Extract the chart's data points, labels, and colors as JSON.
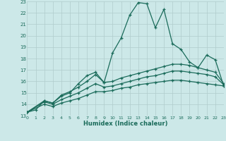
{
  "xlabel": "Humidex (Indice chaleur)",
  "background_color": "#cce8e8",
  "line_color": "#1a6b5a",
  "grid_color": "#b0cccc",
  "xlim": [
    0,
    23
  ],
  "ylim": [
    13,
    23
  ],
  "xticks": [
    0,
    1,
    2,
    3,
    4,
    5,
    6,
    7,
    8,
    9,
    10,
    11,
    12,
    13,
    14,
    15,
    16,
    17,
    18,
    19,
    20,
    21,
    22,
    23
  ],
  "yticks": [
    13,
    14,
    15,
    16,
    17,
    18,
    19,
    20,
    21,
    22,
    23
  ],
  "line1_x": [
    0,
    1,
    2,
    3,
    4,
    5,
    6,
    7,
    8,
    9,
    10,
    11,
    12,
    13,
    14,
    15,
    16,
    17,
    18,
    19,
    20,
    21,
    22,
    23
  ],
  "line1_y": [
    13.3,
    13.5,
    14.3,
    14.1,
    14.7,
    15.0,
    15.8,
    16.5,
    16.8,
    15.9,
    18.5,
    19.8,
    21.8,
    22.9,
    22.8,
    20.7,
    22.3,
    19.3,
    18.8,
    17.7,
    17.2,
    18.3,
    17.9,
    15.6
  ],
  "line2_x": [
    0,
    2,
    3,
    4,
    5,
    6,
    7,
    8,
    9,
    10,
    11,
    12,
    13,
    14,
    15,
    16,
    17,
    18,
    19,
    20,
    21,
    22,
    23
  ],
  "line2_y": [
    13.3,
    14.3,
    14.1,
    14.8,
    15.1,
    15.5,
    16.0,
    16.6,
    15.9,
    16.0,
    16.3,
    16.5,
    16.7,
    16.9,
    17.1,
    17.3,
    17.5,
    17.5,
    17.4,
    17.2,
    17.0,
    16.8,
    15.8
  ],
  "line3_x": [
    0,
    2,
    3,
    4,
    5,
    6,
    7,
    8,
    9,
    10,
    11,
    12,
    13,
    14,
    15,
    16,
    17,
    18,
    19,
    20,
    21,
    22,
    23
  ],
  "line3_y": [
    13.3,
    14.2,
    14.0,
    14.4,
    14.7,
    15.0,
    15.4,
    15.8,
    15.5,
    15.6,
    15.8,
    16.0,
    16.2,
    16.4,
    16.5,
    16.7,
    16.9,
    16.9,
    16.8,
    16.7,
    16.6,
    16.4,
    15.7
  ],
  "line4_x": [
    0,
    2,
    3,
    4,
    5,
    6,
    7,
    8,
    9,
    10,
    11,
    12,
    13,
    14,
    15,
    16,
    17,
    18,
    19,
    20,
    21,
    22,
    23
  ],
  "line4_y": [
    13.3,
    14.0,
    13.8,
    14.1,
    14.3,
    14.5,
    14.8,
    15.1,
    15.1,
    15.2,
    15.4,
    15.5,
    15.7,
    15.8,
    15.9,
    16.0,
    16.1,
    16.1,
    16.0,
    15.9,
    15.8,
    15.7,
    15.6
  ]
}
